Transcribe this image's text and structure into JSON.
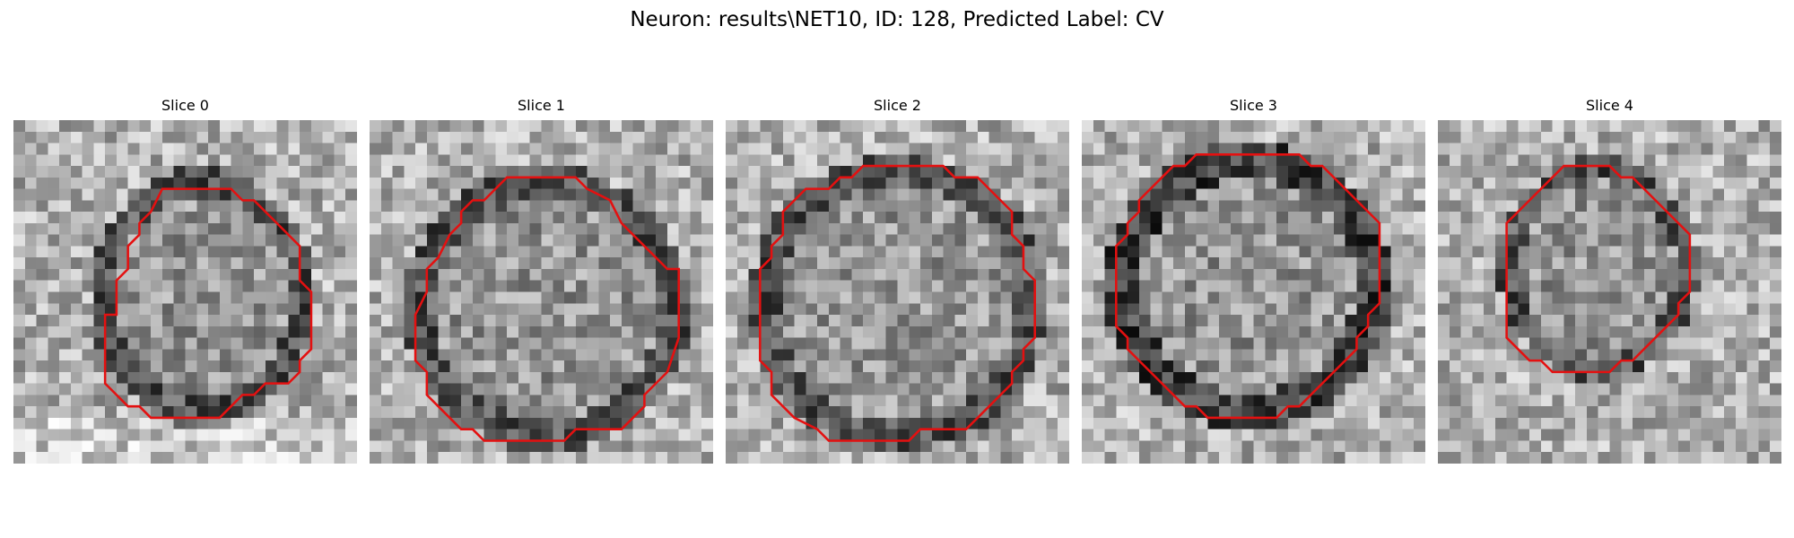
{
  "figure": {
    "title": "Neuron: results\\NET10, ID: 128, Predicted Label: CV"
  },
  "panels": [
    {
      "label": "Slice 0"
    },
    {
      "label": "Slice 1"
    },
    {
      "label": "Slice 2"
    },
    {
      "label": "Slice 3"
    },
    {
      "label": "Slice 4"
    }
  ],
  "colors": {
    "contour": "#e41010"
  }
}
